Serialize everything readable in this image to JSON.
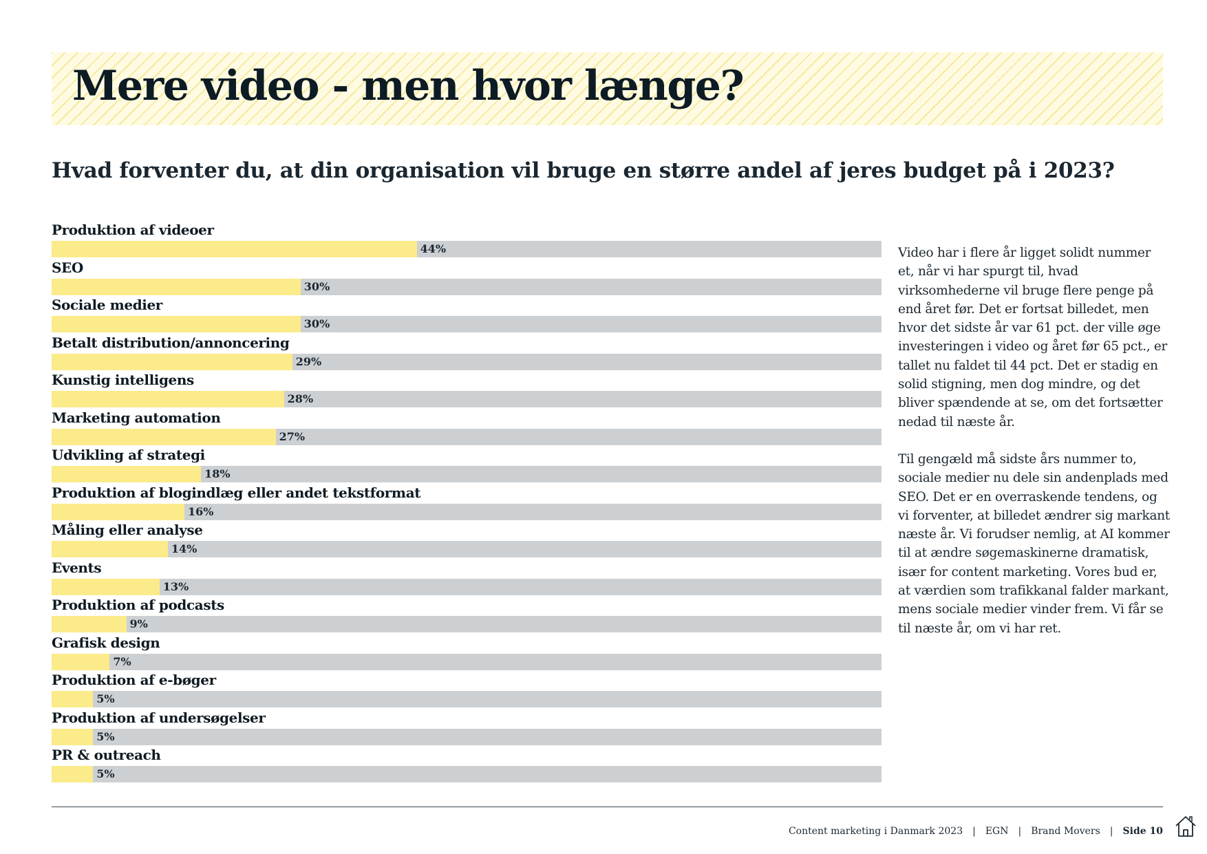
{
  "header": {
    "title": "Mere video - men hvor længe?",
    "subtitle": "Hvad forventer du, at din organisation vil bruge en større andel af jeres budget på i 2023?"
  },
  "colors": {
    "bar_fill": "#fbeb8a",
    "bar_track": "#cdd0d3",
    "text": "#0f1a22"
  },
  "chart_data": {
    "type": "bar",
    "orientation": "horizontal",
    "title": "Hvad forventer du, at din organisation vil bruge en større andel af jeres budget på i 2023?",
    "unit": "%",
    "xlim": [
      0,
      100
    ],
    "categories": [
      "Produktion af videoer",
      "SEO",
      "Sociale medier",
      "Betalt distribution/annoncering",
      "Kunstig intelligens",
      "Marketing automation",
      "Udvikling af strategi",
      "Produktion af blogindlæg eller andet tekstformat",
      "Måling eller analyse",
      "Events",
      "Produktion af podcasts",
      "Grafisk design",
      "Produktion af e-bøger",
      "Produktion af undersøgelser",
      "PR & outreach"
    ],
    "values": [
      44,
      30,
      30,
      29,
      28,
      27,
      18,
      16,
      14,
      13,
      9,
      7,
      5,
      5,
      5
    ],
    "value_labels": [
      "44%",
      "30%",
      "30%",
      "29%",
      "28%",
      "27%",
      "18%",
      "16%",
      "14%",
      "13%",
      "9%",
      "7%",
      "5%",
      "5%",
      "5%"
    ]
  },
  "side_text": {
    "paragraph_1": "Video har i flere år ligget solidt nummer et, når vi har spurgt til, hvad virksomhederne vil bruge flere penge på end året før. Det er fortsat billedet, men hvor det sidste år var 61 pct. der ville øge investeringen i video og året før 65 pct., er tallet nu faldet til 44 pct. Det er stadig en solid stigning, men dog mindre, og det bliver spændende at se, om det fortsætter nedad til næste år.",
    "paragraph_2": "Til gengæld må sidste års nummer to, sociale medier nu dele sin andenplads med SEO. Det er en overraskende tendens, og vi forventer, at billedet ændrer sig markant næste år. Vi forudser nemlig, at AI kommer til at ændre søgemaskinerne dramatisk, især for content marketing. Vores bud er, at værdien som trafikkanal falder markant, mens sociale medier vinder frem. Vi får se til næste år, om vi har ret."
  },
  "footer": {
    "publication": "Content marketing i Danmark 2023",
    "sep": "|",
    "org_1": "EGN",
    "org_2": "Brand Movers",
    "page": "Side 10"
  },
  "icons": {
    "home": "home-icon"
  }
}
